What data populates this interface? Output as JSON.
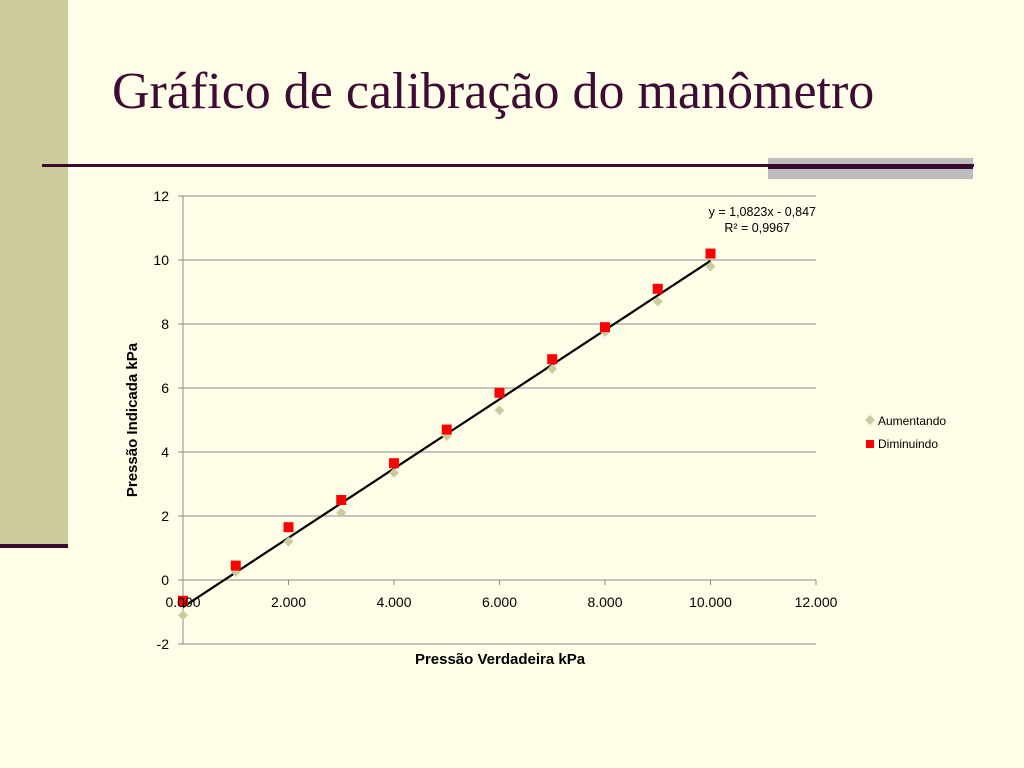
{
  "slide": {
    "title": "Gráfico de calibração do manômetro"
  },
  "colors": {
    "background": "#FEFDE7",
    "band": "#CDCB9B",
    "title": "#3D0B34",
    "rule": "#3A0A2E",
    "series_aumentando": "#C9CC9E",
    "series_diminuindo": "#FF0000",
    "trendline": "#000000",
    "grid": "#8C8C8C"
  },
  "chart_data": {
    "type": "scatter",
    "title": "",
    "xlabel": "Pressão Verdadeira  kPa",
    "ylabel": "Pressão Indicada kPa",
    "xlim": [
      0,
      12
    ],
    "ylim": [
      -2,
      12
    ],
    "x_ticks": [
      {
        "value": 0,
        "label": "0.000"
      },
      {
        "value": 2,
        "label": "2.000"
      },
      {
        "value": 4,
        "label": "4.000"
      },
      {
        "value": 6,
        "label": "6.000"
      },
      {
        "value": 8,
        "label": "8.000"
      },
      {
        "value": 10,
        "label": "10.000"
      },
      {
        "value": 12,
        "label": "12.000"
      }
    ],
    "y_ticks": [
      {
        "value": -2,
        "label": "-2"
      },
      {
        "value": 0,
        "label": "0"
      },
      {
        "value": 2,
        "label": "2"
      },
      {
        "value": 4,
        "label": "4"
      },
      {
        "value": 6,
        "label": "6"
      },
      {
        "value": 8,
        "label": "8"
      },
      {
        "value": 10,
        "label": "10"
      },
      {
        "value": 12,
        "label": "12"
      }
    ],
    "grid": "horizontal",
    "legend_position": "right",
    "series": [
      {
        "name": "Aumentando",
        "marker": "diamond",
        "color": "#C9CC9E",
        "x": [
          0,
          1,
          2,
          3,
          4,
          5,
          6,
          7,
          8,
          9,
          10
        ],
        "y": [
          -1.1,
          0.25,
          1.2,
          2.1,
          3.35,
          4.5,
          5.3,
          6.6,
          7.75,
          8.7,
          9.8
        ]
      },
      {
        "name": "Diminuindo",
        "marker": "square",
        "color": "#FF0000",
        "x": [
          0,
          1,
          2,
          3,
          4,
          5,
          6,
          7,
          8,
          9,
          10
        ],
        "y": [
          -0.65,
          0.45,
          1.65,
          2.5,
          3.65,
          4.7,
          5.85,
          6.9,
          7.9,
          9.1,
          10.2
        ]
      }
    ],
    "trendline": {
      "slope": 1.0823,
      "intercept": -0.847,
      "x_range": [
        0,
        10
      ],
      "equation": "y = 1,0823x - 0,847",
      "r_squared": "R² = 0,9967"
    }
  }
}
